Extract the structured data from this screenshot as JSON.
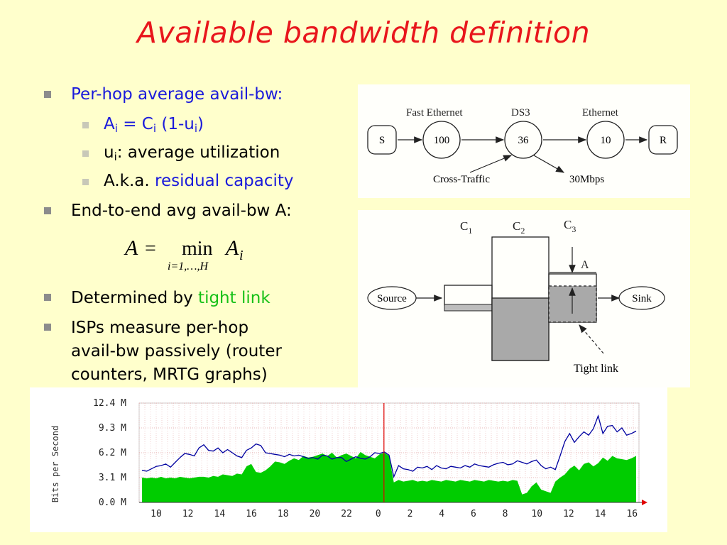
{
  "slide": {
    "title": "Available bandwidth definition",
    "bullets": {
      "b1": "Per-hop average avail-bw:",
      "b1_1": {
        "a": "A",
        "a_sub": "i",
        "eq": " = C",
        "c_sub": "i",
        "rest": " (1-u",
        "u_sub": "i",
        "close": ")"
      },
      "b1_2": {
        "u": "u",
        "u_sub": "i",
        "rest": ": average utilization"
      },
      "b1_3": {
        "prefix": "A.k.a. ",
        "highlight": "residual capacity"
      },
      "b2": "End-to-end avg avail-bw A:",
      "b3": {
        "prefix": "Determined by ",
        "highlight": "tight link"
      },
      "b4": [
        "ISPs measure per-hop",
        "avail-bw passively (router",
        "counters, MRTG graphs)"
      ]
    },
    "formula": {
      "lhs": "A",
      "eq": "=",
      "op": "min",
      "limits": "i=1,…,H",
      "rhs": "A",
      "rhs_sub": "i"
    }
  },
  "network_diagram": {
    "labels": [
      "Fast Ethernet",
      "DS3",
      "Ethernet"
    ],
    "nodes": [
      "S",
      "100",
      "36",
      "10",
      "R"
    ],
    "cross_traffic": "Cross-Traffic",
    "rate": "30Mbps"
  },
  "capacity_diagram": {
    "c1": "C",
    "c1_sub": "1",
    "c2": "C",
    "c2_sub": "2",
    "c3": "C",
    "c3_sub": "3",
    "a_label": "A",
    "source": "Source",
    "sink": "Sink",
    "tight_link": "Tight link"
  },
  "mrtg": {
    "y_axis_label": "Bits per Second",
    "y_ticks": [
      "12.4 M",
      "9.3 M",
      "6.2 M",
      "3.1 M",
      "0.0 M"
    ],
    "x_ticks": [
      "10",
      "12",
      "14",
      "16",
      "18",
      "20",
      "22",
      "0",
      "2",
      "4",
      "6",
      "8",
      "10",
      "12",
      "14",
      "16"
    ],
    "colors": {
      "fill": "#00cc00",
      "line": "#0000a0",
      "marker": "#e00000",
      "grid": "#e0a0a0"
    },
    "chart_data": {
      "type": "area",
      "ylim": [
        0,
        12.4
      ],
      "series": [
        {
          "values": [
            3.1,
            3.0,
            3.1,
            3.0,
            3.2,
            3.0,
            3.1,
            3.0,
            3.2,
            3.1,
            3.0,
            3.1,
            3.2,
            3.2,
            3.1,
            3.3,
            3.2,
            3.5,
            3.4,
            3.3,
            3.6,
            3.5,
            4.5,
            4.8,
            3.8,
            3.7,
            4.0,
            4.5,
            5.1,
            5.0,
            4.8,
            5.2,
            5.5,
            5.3,
            5.8,
            5.6,
            5.7,
            5.9,
            6.1,
            5.8,
            6.2,
            5.6,
            5.9,
            6.1,
            5.8,
            5.5,
            6.3,
            5.9,
            5.7,
            5.5,
            6.0,
            6.2,
            5.8,
            2.5,
            2.8,
            2.6,
            2.7,
            2.8,
            2.6,
            2.7,
            2.6,
            2.8,
            2.7,
            2.6,
            2.8,
            2.7,
            2.6,
            2.8,
            2.7,
            2.6,
            2.8,
            2.7,
            2.6,
            2.8,
            2.7,
            2.6,
            2.7,
            2.6,
            2.8,
            2.7,
            1.0,
            1.2,
            2.0,
            2.5,
            1.6,
            1.4,
            1.2,
            2.6,
            3.1,
            3.5,
            4.2,
            4.6,
            4.0,
            4.8,
            5.0,
            4.5,
            4.9,
            5.6,
            5.2,
            5.8,
            5.5,
            5.4,
            5.3,
            5.5,
            5.8
          ]
        },
        {
          "values": [
            4.0,
            3.9,
            4.2,
            4.5,
            4.6,
            4.8,
            4.4,
            5.0,
            5.6,
            6.1,
            6.0,
            5.8,
            6.8,
            7.2,
            6.5,
            6.4,
            6.8,
            6.2,
            6.6,
            6.2,
            5.8,
            5.6,
            6.5,
            6.8,
            7.3,
            7.1,
            6.2,
            6.1,
            6.0,
            5.9,
            5.7,
            6.0,
            5.8,
            5.9,
            5.7,
            5.5,
            5.6,
            5.4,
            5.9,
            5.8,
            5.4,
            5.6,
            5.6,
            5.1,
            5.4,
            5.7,
            5.5,
            5.4,
            5.7,
            6.2,
            6.1,
            6.3,
            5.9,
            3.2,
            4.6,
            4.2,
            4.1,
            3.9,
            4.4,
            4.3,
            4.5,
            4.1,
            4.6,
            4.3,
            4.2,
            4.5,
            4.4,
            4.3,
            4.6,
            4.4,
            4.8,
            4.6,
            4.5,
            4.4,
            4.7,
            4.9,
            5.0,
            4.7,
            4.8,
            5.2,
            5.0,
            4.8,
            5.1,
            5.3,
            4.6,
            4.2,
            4.4,
            4.1,
            5.8,
            7.6,
            8.6,
            7.5,
            8.2,
            8.8,
            8.4,
            9.2,
            10.8,
            8.6,
            9.5,
            9.6,
            8.8,
            9.3,
            8.4,
            8.6,
            8.9
          ]
        }
      ]
    }
  }
}
